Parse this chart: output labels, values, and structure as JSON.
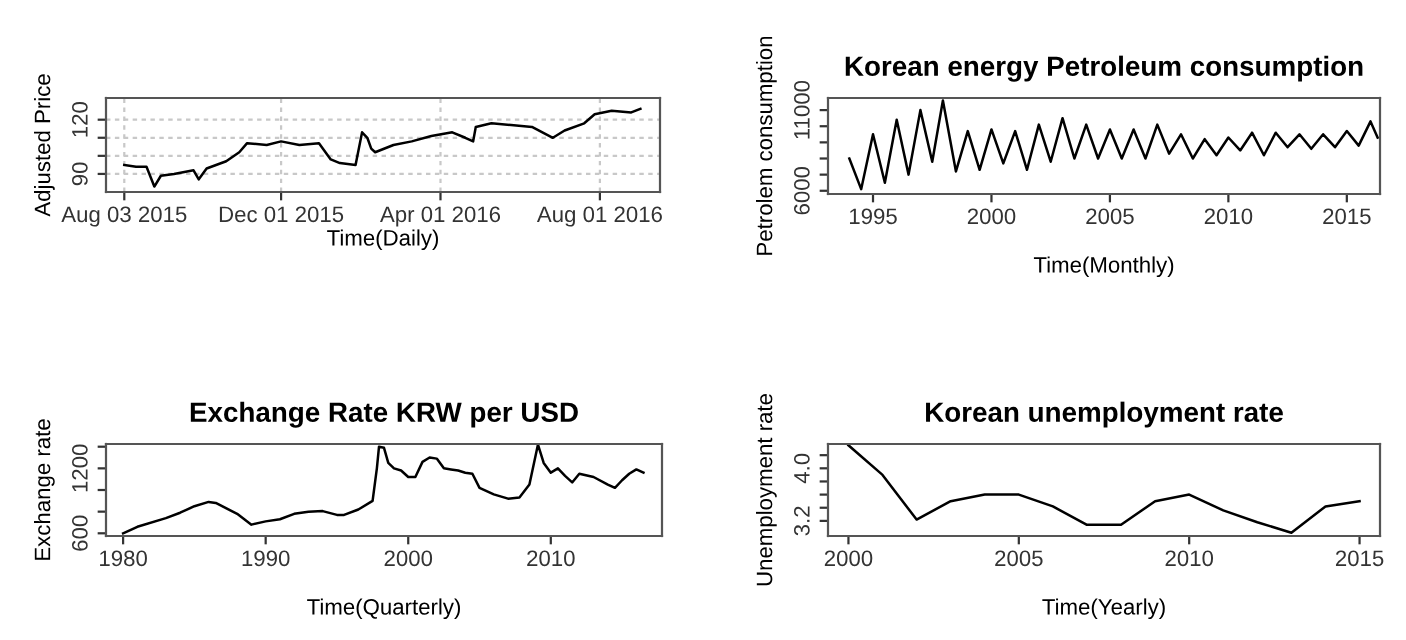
{
  "chart_data": [
    {
      "type": "line",
      "xlabel": "Time(Daily)",
      "ylabel": "Adjusted Price",
      "grid": true,
      "x": [
        "2015-08-03",
        "2015-08-12",
        "2015-08-20",
        "2015-08-26",
        "2015-08-31",
        "2015-09-10",
        "2015-09-25",
        "2015-09-29",
        "2015-10-05",
        "2015-10-20",
        "2015-10-30",
        "2015-11-05",
        "2015-11-20",
        "2015-12-01",
        "2015-12-15",
        "2015-12-30",
        "2016-01-08",
        "2016-01-15",
        "2016-01-27",
        "2016-02-01",
        "2016-02-05",
        "2016-02-08",
        "2016-02-11",
        "2016-02-25",
        "2016-03-10",
        "2016-03-25",
        "2016-04-10",
        "2016-04-20",
        "2016-04-26",
        "2016-04-28",
        "2016-05-10",
        "2016-05-25",
        "2016-06-10",
        "2016-06-26",
        "2016-07-05",
        "2016-07-20",
        "2016-07-28",
        "2016-08-10",
        "2016-08-25",
        "2016-09-01"
      ],
      "series": [
        {
          "color": "#000000",
          "values": [
            95,
            94,
            94,
            83,
            89,
            90,
            92,
            87,
            93,
            97,
            102,
            107,
            106,
            108,
            106,
            107,
            98,
            96,
            95,
            113,
            110,
            104,
            102,
            106,
            108,
            111,
            113,
            110,
            108,
            116,
            118,
            117,
            116,
            110,
            114,
            118,
            123,
            125,
            124,
            126
          ]
        }
      ],
      "xlim": [
        "2015-07-20",
        "2016-09-16"
      ],
      "ylim": [
        80,
        132
      ],
      "xticks": [
        {
          "value": "2015-08-03",
          "label": "Aug 03 2015"
        },
        {
          "value": "2015-12-01",
          "label": "Dec 01 2015"
        },
        {
          "value": "2016-04-01",
          "label": "Apr 01 2016"
        },
        {
          "value": "2016-08-01",
          "label": "Aug 01 2016"
        }
      ],
      "yticks": [
        90,
        {
          "value": 100,
          "label": null
        },
        {
          "value": 110,
          "label": null
        },
        120
      ]
    },
    {
      "type": "line",
      "title": "Korean energy Petroleum consumption",
      "xlabel": "Time(Monthly)",
      "ylabel": "Petrolem consumption",
      "x": [
        1994.0,
        1994.5,
        1995.0,
        1995.5,
        1996.0,
        1996.5,
        1997.0,
        1997.5,
        1997.95,
        1998.5,
        1999.0,
        1999.5,
        2000.0,
        2000.5,
        2001.0,
        2001.5,
        2002.0,
        2002.5,
        2003.0,
        2003.5,
        2004.0,
        2004.5,
        2005.0,
        2005.5,
        2006.0,
        2006.5,
        2007.0,
        2007.5,
        2008.0,
        2008.5,
        2009.0,
        2009.5,
        2010.0,
        2010.5,
        2011.0,
        2011.5,
        2012.0,
        2012.5,
        2013.0,
        2013.5,
        2014.0,
        2014.5,
        2015.0,
        2015.5,
        2016.0,
        2016.3
      ],
      "series": [
        {
          "color": "#000000",
          "values": [
            8000,
            6100,
            9500,
            6500,
            10400,
            7000,
            11000,
            7800,
            11600,
            7200,
            9700,
            7300,
            9800,
            7700,
            9700,
            7300,
            10100,
            7800,
            10500,
            8000,
            10100,
            8000,
            9800,
            8000,
            9800,
            8000,
            10100,
            8300,
            9500,
            8000,
            9200,
            8200,
            9300,
            8500,
            9600,
            8200,
            9600,
            8700,
            9500,
            8600,
            9500,
            8700,
            9700,
            8800,
            10300,
            9300
          ]
        }
      ],
      "xlim": [
        1993.1,
        2016.4
      ],
      "ylim": [
        5800,
        11750
      ],
      "xticks": [
        1995,
        2000,
        2005,
        2010,
        2015
      ],
      "yticks": [
        6000,
        {
          "value": 7000,
          "label": null
        },
        {
          "value": 8000,
          "label": null
        },
        {
          "value": 9000,
          "label": null
        },
        {
          "value": 10000,
          "label": null
        },
        11000
      ]
    },
    {
      "type": "line",
      "title": "Exchange Rate KRW per USD",
      "xlabel": "Time(Quarterly)",
      "ylabel": "Exchange rate",
      "x": [
        1980,
        1981,
        1983,
        1984,
        1985,
        1986,
        1986.5,
        1988,
        1989,
        1990,
        1991,
        1992,
        1993,
        1994,
        1995,
        1995.5,
        1996.5,
        1997.5,
        1997.8,
        1997.95,
        1998.3,
        1998.6,
        1999,
        1999.5,
        2000,
        2000.5,
        2001,
        2001.5,
        2002,
        2002.5,
        2003,
        2003.5,
        2004,
        2004.5,
        2005,
        2006,
        2007,
        2007.8,
        2008.5,
        2009.1,
        2009.5,
        2010,
        2010.5,
        2011,
        2011.5,
        2012,
        2013,
        2014,
        2014.5,
        2015,
        2015.5,
        2016,
        2016.5
      ],
      "series": [
        {
          "color": "#000000",
          "values": [
            600,
            660,
            740,
            790,
            850,
            890,
            880,
            780,
            680,
            710,
            730,
            780,
            800,
            805,
            770,
            770,
            820,
            900,
            1200,
            1400,
            1390,
            1250,
            1200,
            1180,
            1120,
            1120,
            1260,
            1300,
            1290,
            1200,
            1190,
            1180,
            1160,
            1150,
            1020,
            960,
            920,
            930,
            1050,
            1420,
            1250,
            1160,
            1200,
            1130,
            1070,
            1150,
            1120,
            1050,
            1020,
            1090,
            1150,
            1190,
            1160
          ]
        }
      ],
      "xlim": [
        1978.8,
        2017.8
      ],
      "ylim": [
        575,
        1425
      ],
      "xticks": [
        1980,
        1990,
        2000,
        2010
      ],
      "yticks": [
        600,
        {
          "value": 800,
          "label": null
        },
        {
          "value": 1000,
          "label": null
        },
        1200,
        {
          "value": 1400,
          "label": null
        }
      ]
    },
    {
      "type": "line",
      "title": "Korean unemployment rate",
      "xlabel": "Time(Yearly)",
      "ylabel": "Unemployment rate",
      "x": [
        2000,
        2001,
        2002,
        2003,
        2004,
        2005,
        2006,
        2007,
        2008,
        2009,
        2010,
        2011,
        2012,
        2013,
        2014,
        2015
      ],
      "series": [
        {
          "color": "#000000",
          "values": [
            4.35,
            3.9,
            3.22,
            3.5,
            3.6,
            3.6,
            3.42,
            3.14,
            3.14,
            3.5,
            3.6,
            3.36,
            3.18,
            3.02,
            3.42,
            3.5
          ]
        }
      ],
      "xlim": [
        1999.4,
        2015.6
      ],
      "ylim": [
        2.97,
        4.37
      ],
      "xticks": [
        2000,
        2005,
        2010,
        2015
      ],
      "yticks": [
        {
          "value": 3.2,
          "label": "3.2"
        },
        {
          "value": 3.4,
          "label": null
        },
        {
          "value": 3.6,
          "label": null
        },
        {
          "value": 3.8,
          "label": null
        },
        {
          "value": 4.0,
          "label": "4.0"
        },
        {
          "value": 4.2,
          "label": null
        }
      ]
    }
  ]
}
